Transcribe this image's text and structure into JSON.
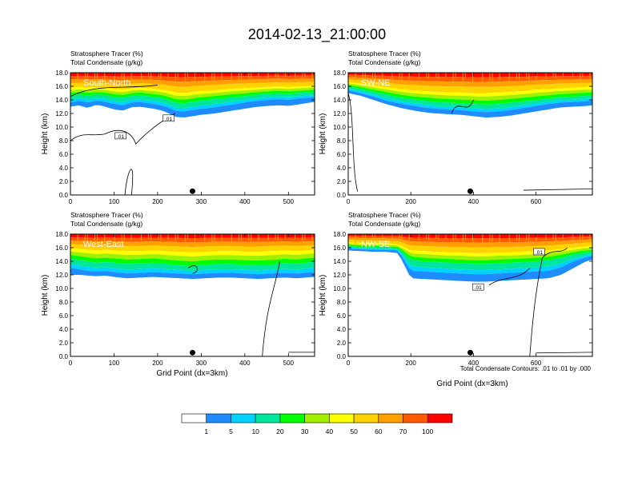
{
  "page": {
    "title": "2014-02-13_21:00:00",
    "note": "Total Condensate Contours: .01 to .01 by .000"
  },
  "chart_data": {
    "type": "contour",
    "colors": [
      "#ffffff",
      "#1e8cff",
      "#00d2ff",
      "#00e69b",
      "#00ff00",
      "#a0f000",
      "#ffff00",
      "#ffd200",
      "#ffa000",
      "#ff5a00",
      "#ff0000"
    ],
    "colorbar": {
      "levels": [
        "1",
        "5",
        "10",
        "20",
        "30",
        "40",
        "50",
        "60",
        "70",
        "100"
      ]
    },
    "panels": [
      {
        "label": "South-North",
        "title_lines": [
          "Stratosphere Tracer   (%)",
          "Total Condensate   (g/kg)"
        ],
        "ylabel": "Height (km)",
        "xlabel": "",
        "xlim": [
          0,
          560
        ],
        "ylim": [
          0,
          18
        ],
        "xticks": [
          0,
          100,
          200,
          300,
          400,
          500
        ],
        "yticks": [
          "0.0",
          "2.0",
          "4.0",
          "6.0",
          "8.0",
          "10.0",
          "12.0",
          "14.0",
          "16.0",
          "18.0"
        ],
        "marker_x": 280,
        "contour_labels": [
          ".01",
          ".01"
        ],
        "fill_profile": {
          "x": [
            0,
            20,
            40,
            60,
            80,
            100,
            120,
            140,
            160,
            180,
            200,
            220,
            240,
            260,
            280,
            300,
            330,
            360,
            390,
            420,
            450,
            480,
            500,
            520,
            540,
            560
          ],
          "t1": [
            13.0,
            13.2,
            12.8,
            13.3,
            13.0,
            12.6,
            12.4,
            12.9,
            13.0,
            12.8,
            12.6,
            12.2,
            11.5,
            11.4,
            11.6,
            11.8,
            12.0,
            12.3,
            12.6,
            12.9,
            13.1,
            13.2,
            13.1,
            13.3,
            13.5,
            13.7
          ],
          "t5": [
            13.6,
            13.9,
            13.6,
            13.9,
            13.7,
            13.4,
            13.2,
            13.6,
            13.7,
            13.5,
            13.3,
            13.0,
            12.4,
            12.3,
            12.5,
            12.7,
            12.9,
            13.2,
            13.5,
            13.8,
            14.0,
            14.1,
            14.0,
            14.2,
            14.3,
            14.4
          ],
          "t20": [
            14.6,
            14.8,
            14.6,
            14.8,
            14.7,
            14.4,
            14.3,
            14.6,
            14.7,
            14.5,
            14.4,
            14.1,
            13.6,
            13.5,
            13.7,
            13.9,
            14.1,
            14.3,
            14.5,
            14.7,
            14.9,
            15.0,
            14.9,
            15.0,
            15.1,
            15.2
          ],
          "t50": [
            15.8,
            15.9,
            15.8,
            15.9,
            15.8,
            15.6,
            15.5,
            15.7,
            15.8,
            15.7,
            15.6,
            15.4,
            15.1,
            15.0,
            15.2,
            15.3,
            15.4,
            15.6,
            15.7,
            15.8,
            15.9,
            16.0,
            15.9,
            16.0,
            16.0,
            16.1
          ]
        }
      },
      {
        "label": "SW-NE",
        "title_lines": [
          "Stratosphere Tracer   (%)",
          "Total Condensate   (g/kg)"
        ],
        "ylabel": "Height (km)",
        "xlabel": "",
        "xlim": [
          0,
          780
        ],
        "ylim": [
          0,
          18
        ],
        "xticks": [
          0,
          200,
          400,
          600
        ],
        "yticks": [
          "0.0",
          "2.0",
          "4.0",
          "6.0",
          "8.0",
          "10.0",
          "12.0",
          "14.0",
          "16.0",
          "18.0"
        ],
        "marker_x": 390,
        "contour_labels": [],
        "fill_profile": {
          "x": [
            0,
            40,
            80,
            120,
            160,
            200,
            240,
            280,
            320,
            360,
            400,
            440,
            480,
            520,
            560,
            600,
            640,
            680,
            720,
            760,
            780
          ],
          "t1": [
            15.0,
            14.6,
            14.0,
            13.4,
            12.9,
            12.5,
            12.2,
            12.0,
            11.9,
            11.8,
            11.6,
            11.4,
            11.5,
            11.7,
            12.0,
            12.3,
            12.6,
            12.9,
            13.0,
            13.1,
            13.2
          ],
          "t5": [
            15.4,
            15.0,
            14.5,
            13.9,
            13.5,
            13.2,
            12.9,
            12.7,
            12.6,
            12.5,
            12.3,
            12.2,
            12.3,
            12.5,
            12.8,
            13.1,
            13.4,
            13.6,
            13.7,
            13.8,
            13.9
          ],
          "t20": [
            16.0,
            15.6,
            15.2,
            14.8,
            14.4,
            14.1,
            13.9,
            13.7,
            13.6,
            13.5,
            13.4,
            13.3,
            13.4,
            13.6,
            13.8,
            14.0,
            14.2,
            14.4,
            14.5,
            14.6,
            14.6
          ],
          "t50": [
            16.6,
            16.4,
            16.1,
            15.9,
            15.6,
            15.4,
            15.3,
            15.2,
            15.1,
            15.1,
            15.0,
            15.0,
            15.1,
            15.2,
            15.3,
            15.5,
            15.6,
            15.7,
            15.8,
            15.9,
            15.9
          ]
        }
      },
      {
        "label": "West-East",
        "title_lines": [
          "Stratosphere Tracer   (%)",
          "Total Condensate   (g/kg)"
        ],
        "ylabel": "Height (km)",
        "xlabel": "Grid Point (dx=3km)",
        "xlim": [
          0,
          560
        ],
        "ylim": [
          0,
          18
        ],
        "xticks": [
          0,
          100,
          200,
          300,
          400,
          500
        ],
        "yticks": [
          "0.0",
          "2.0",
          "4.0",
          "6.0",
          "8.0",
          "10.0",
          "12.0",
          "14.0",
          "16.0",
          "18.0"
        ],
        "marker_x": 280,
        "contour_labels": [],
        "fill_profile": {
          "x": [
            0,
            20,
            40,
            60,
            80,
            100,
            130,
            160,
            190,
            220,
            250,
            280,
            310,
            340,
            370,
            400,
            430,
            460,
            490,
            520,
            540,
            560
          ],
          "t1": [
            12.0,
            12.0,
            11.9,
            11.8,
            11.9,
            11.7,
            11.5,
            11.6,
            11.7,
            11.6,
            11.5,
            11.4,
            11.5,
            11.6,
            11.6,
            11.5,
            11.4,
            11.5,
            11.6,
            11.5,
            11.6,
            11.7
          ],
          "t5": [
            13.0,
            12.8,
            12.6,
            12.5,
            12.6,
            12.4,
            12.2,
            12.3,
            12.4,
            12.3,
            12.2,
            12.1,
            12.2,
            12.3,
            12.3,
            12.2,
            12.1,
            12.2,
            12.3,
            12.2,
            12.3,
            12.4
          ],
          "t20": [
            14.4,
            14.2,
            14.0,
            13.8,
            13.9,
            13.8,
            13.6,
            13.7,
            13.8,
            13.6,
            13.4,
            13.3,
            13.5,
            13.6,
            13.6,
            13.5,
            13.4,
            13.5,
            13.7,
            13.6,
            13.8,
            13.9
          ],
          "t50": [
            15.9,
            15.8,
            15.7,
            15.6,
            15.7,
            15.6,
            15.5,
            15.5,
            15.6,
            15.5,
            15.4,
            15.3,
            15.4,
            15.5,
            15.5,
            15.4,
            15.4,
            15.5,
            15.6,
            15.5,
            15.6,
            15.7
          ]
        }
      },
      {
        "label": "NW-SE",
        "title_lines": [
          "Stratosphere Tracer   (%)",
          "Total Condensate   (g/kg)"
        ],
        "ylabel": "Height (km)",
        "xlabel": "Grid Point (dx=3km)",
        "xlim": [
          0,
          780
        ],
        "ylim": [
          0,
          18
        ],
        "xticks": [
          0,
          200,
          400,
          600
        ],
        "yticks": [
          "0.0",
          "2.0",
          "4.0",
          "6.0",
          "8.0",
          "10.0",
          "12.0",
          "14.0",
          "16.0",
          "18.0"
        ],
        "marker_x": 390,
        "contour_labels": [
          ".01",
          ".01"
        ],
        "fill_profile": {
          "x": [
            0,
            40,
            80,
            120,
            160,
            200,
            240,
            280,
            320,
            360,
            400,
            440,
            480,
            520,
            560,
            600,
            640,
            680,
            720,
            760,
            780
          ],
          "t1": [
            15.6,
            15.5,
            15.4,
            15.4,
            15.2,
            11.5,
            11.4,
            11.3,
            11.2,
            11.1,
            11.0,
            11.0,
            11.1,
            11.2,
            11.3,
            11.4,
            11.5,
            12.0,
            13.0,
            14.0,
            14.2
          ],
          "t5": [
            15.9,
            15.8,
            15.7,
            15.7,
            15.6,
            12.6,
            12.5,
            12.4,
            12.3,
            12.2,
            12.1,
            12.1,
            12.2,
            12.3,
            12.4,
            12.5,
            12.6,
            13.1,
            14.0,
            14.6,
            14.8
          ],
          "t20": [
            16.2,
            16.1,
            16.1,
            16.0,
            15.9,
            14.2,
            14.0,
            13.9,
            13.8,
            13.7,
            13.6,
            13.6,
            13.7,
            13.8,
            13.9,
            14.0,
            14.2,
            14.5,
            15.0,
            15.3,
            15.4
          ],
          "t50": [
            16.8,
            16.7,
            16.7,
            16.6,
            16.5,
            15.6,
            15.5,
            15.4,
            15.3,
            15.3,
            15.2,
            15.2,
            15.3,
            15.3,
            15.4,
            15.5,
            15.6,
            15.8,
            16.0,
            16.2,
            16.3
          ]
        }
      }
    ]
  }
}
